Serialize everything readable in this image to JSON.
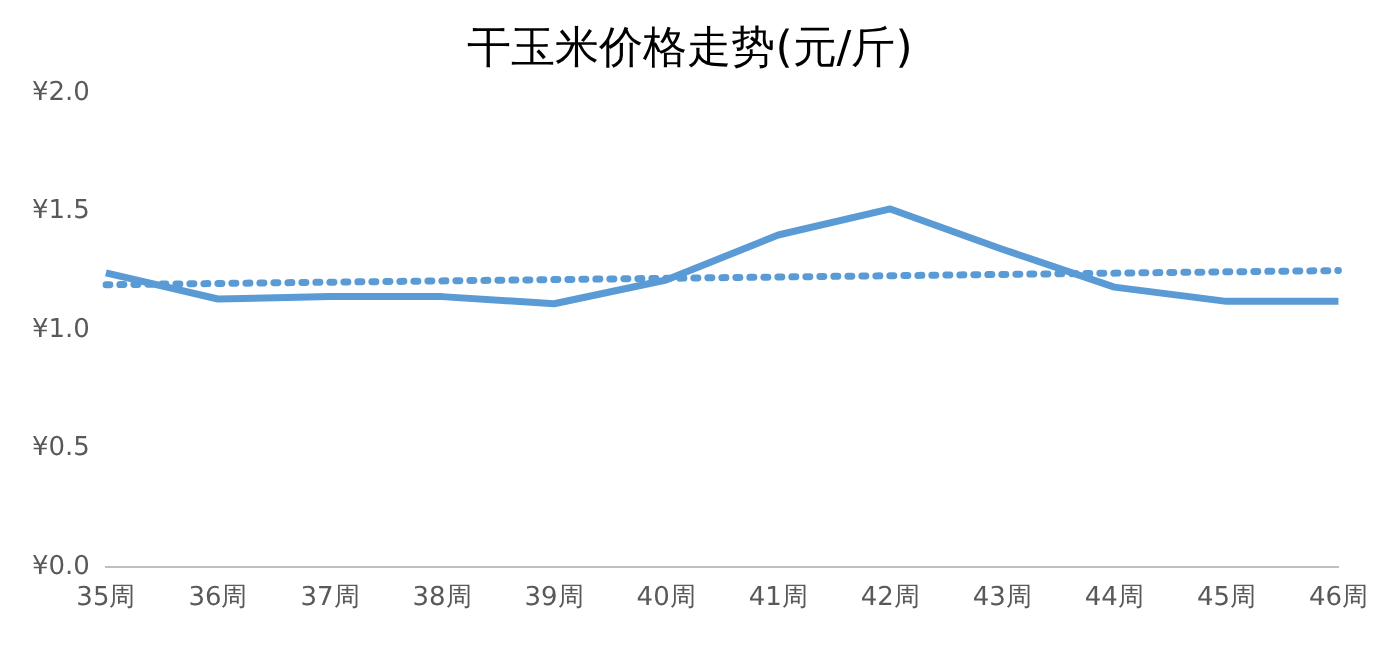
{
  "chart_data": {
    "type": "line",
    "title": "干玉米价格走势(元/斤)",
    "categories": [
      "35周",
      "36周",
      "37周",
      "38周",
      "39周",
      "40周",
      "41周",
      "42周",
      "43周",
      "44周",
      "45周",
      "46周"
    ],
    "series": [
      {
        "color": "#5b9bd5",
        "values": [
          1.24,
          1.13,
          1.14,
          1.14,
          1.11,
          1.21,
          1.4,
          1.51,
          1.34,
          1.18,
          1.12,
          1.12
        ]
      },
      {
        "type": "line",
        "color": "#5b9bd5",
        "line_style": "dotted",
        "values": [
          1.19,
          null,
          null,
          null,
          null,
          null,
          null,
          null,
          null,
          null,
          null,
          1.25
        ]
      }
    ],
    "ylim": [
      0,
      2
    ],
    "yticks": [
      {
        "value": 0,
        "label": "¥0.0"
      },
      {
        "value": 0.5,
        "label": "¥0.5"
      },
      {
        "value": 1,
        "label": "¥1.0"
      },
      {
        "value": 1.5,
        "label": "¥1.5"
      },
      {
        "value": 2,
        "label": "¥2.0"
      }
    ],
    "grid": false,
    "legend": false,
    "marker": "none",
    "line_style": "solid"
  }
}
